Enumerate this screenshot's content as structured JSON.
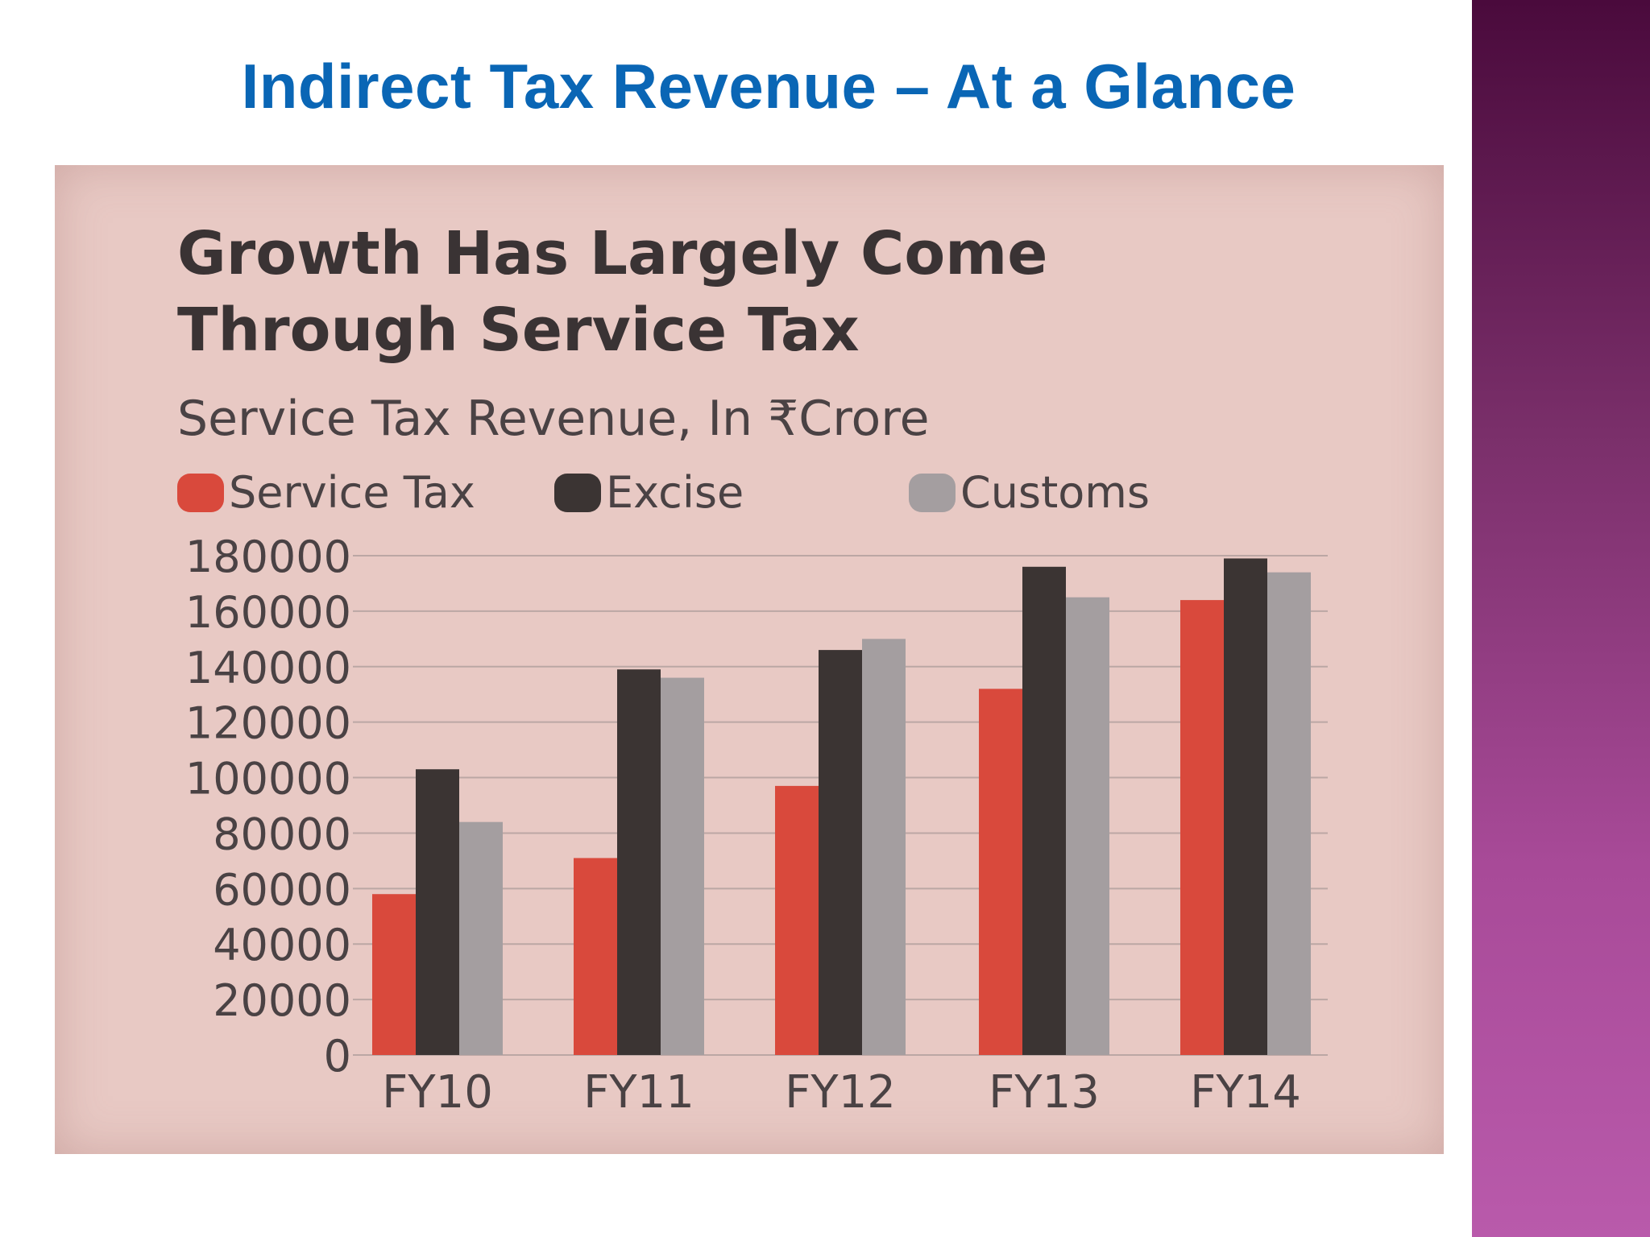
{
  "slide": {
    "title": "Indirect Tax Revenue – At a Glance"
  },
  "colors": {
    "title": "#0a66b5",
    "service_tax": "#d9493c",
    "excise": "#3b3433",
    "customs": "#a49ea0",
    "side_band": "#8a3a7c"
  },
  "chart_data": {
    "type": "bar",
    "title": "Growth Has Largely Come Through Service Tax",
    "title_lines": [
      "Growth Has Largely Come",
      "Through Service Tax"
    ],
    "subtitle": "Service Tax Revenue, In ₹Crore",
    "categories": [
      "FY10",
      "FY11",
      "FY12",
      "FY13",
      "FY14"
    ],
    "series": [
      {
        "name": "Service Tax",
        "values": [
          58000,
          71000,
          97000,
          132000,
          164000
        ]
      },
      {
        "name": "Excise",
        "values": [
          103000,
          139000,
          146000,
          176000,
          179000
        ]
      },
      {
        "name": "Customs",
        "values": [
          84000,
          136000,
          150000,
          165000,
          174000
        ]
      }
    ],
    "ylim": [
      0,
      180000
    ],
    "yticks": [
      "180000",
      "160000",
      "140000",
      "120000",
      "100000",
      "80000",
      "60000",
      "40000",
      "20000",
      "0"
    ],
    "legend_position": "top",
    "grid": true
  }
}
